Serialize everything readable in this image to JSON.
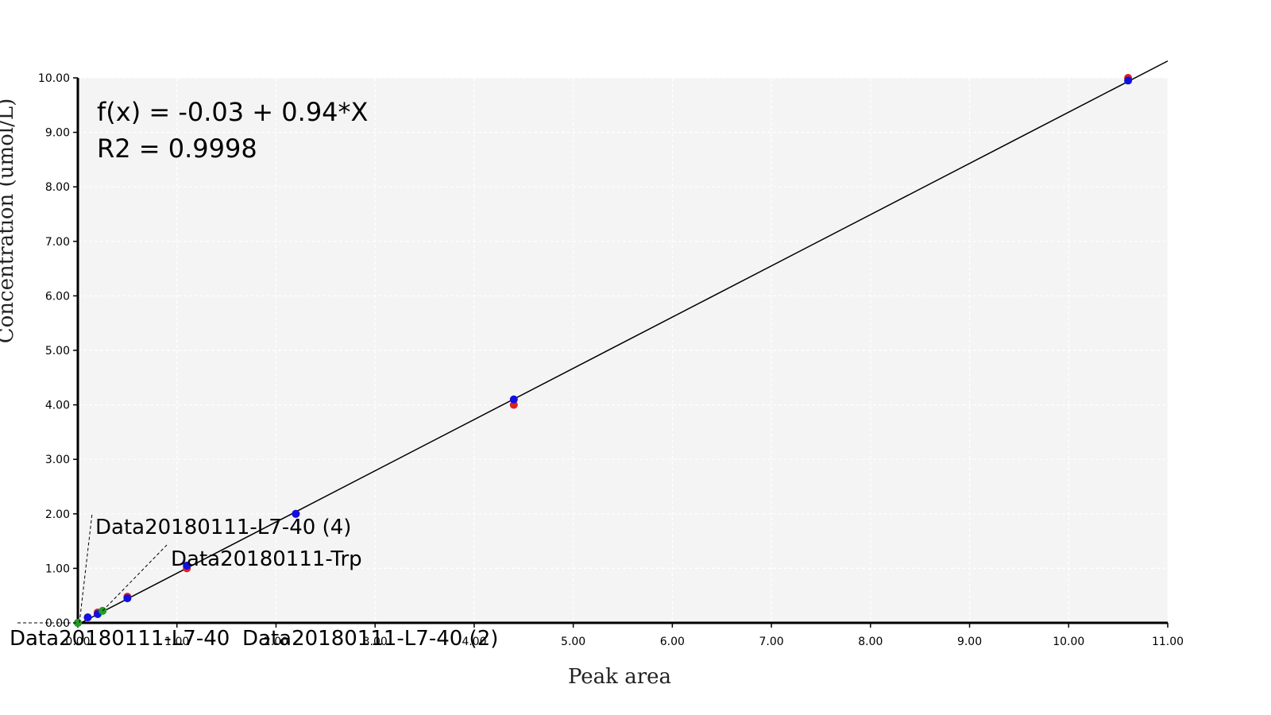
{
  "chart_data": {
    "type": "scatter",
    "title": "",
    "xlabel": "Peak area",
    "ylabel": "Concentration (umol/L)",
    "xlim": [
      0,
      11
    ],
    "ylim": [
      0,
      10
    ],
    "x_ticks": [
      "0.00",
      "1.00",
      "2.00",
      "3.00",
      "4.00",
      "5.00",
      "6.00",
      "7.00",
      "8.00",
      "9.00",
      "10.00",
      "11.00"
    ],
    "y_ticks": [
      "0.00",
      "1.00",
      "2.00",
      "3.00",
      "4.00",
      "5.00",
      "6.00",
      "7.00",
      "8.00",
      "9.00",
      "10.00"
    ],
    "grid": true,
    "background": "#f4f4f4",
    "equation": "f(x) = -0.03 + 0.94*X",
    "r2_text": "R2 = 0.9998",
    "fit_line": {
      "intercept": -0.03,
      "slope": 0.94,
      "x_range": [
        0,
        11
      ],
      "color": "#000000"
    },
    "series": [
      {
        "color": "#e02020",
        "x": [
          0.0,
          0.1,
          0.2,
          0.5,
          1.1,
          2.2,
          4.4,
          10.6
        ],
        "y": [
          0.0,
          0.1,
          0.19,
          0.48,
          1.0,
          2.0,
          4.0,
          10.0
        ]
      },
      {
        "color": "#1010e0",
        "x": [
          0.0,
          0.1,
          0.2,
          0.5,
          1.1,
          2.2,
          4.4,
          10.6
        ],
        "y": [
          0.0,
          0.1,
          0.16,
          0.45,
          1.05,
          2.0,
          4.1,
          9.95
        ]
      },
      {
        "color": "#20a020",
        "x": [
          0.0,
          0.25
        ],
        "y": [
          0.0,
          0.22
        ]
      }
    ],
    "annotations": [
      {
        "text": "Data20180111-L7-40 (4)",
        "point": [
          0.0,
          0.0
        ],
        "label_at": [
          0.2,
          2.0
        ]
      },
      {
        "text": "Data20180111-Trp",
        "point": [
          0.25,
          0.22
        ],
        "label_at": [
          1.9,
          1.2
        ]
      },
      {
        "text": "Data20180111-L7-40",
        "point": [
          0.0,
          0.0
        ],
        "label_at": [
          0.0,
          -0.3
        ]
      },
      {
        "text": "Data20180111-L7-40 (2)",
        "point": [
          0.0,
          0.0
        ],
        "label_at": [
          2.1,
          -0.3
        ]
      }
    ]
  }
}
